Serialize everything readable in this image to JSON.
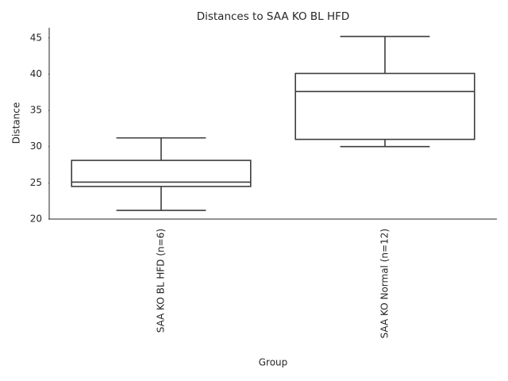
{
  "chart_data": {
    "type": "box",
    "title": "Distances to SAA KO BL HFD",
    "x_label": "Group",
    "y_label": "Distance",
    "categories": [
      "SAA KO BL HFD (n=6)",
      "SAA KO Normal (n=12)"
    ],
    "boxes": [
      {
        "low": 21.2,
        "q1": 24.5,
        "median": 25.1,
        "q3": 28.1,
        "high": 31.2
      },
      {
        "low": 30.0,
        "q1": 31.0,
        "median": 37.6,
        "q3": 40.1,
        "high": 45.2
      }
    ],
    "color": "#3d3d3d",
    "fill": "#ffffff",
    "ylim": [
      20,
      46.4
    ],
    "yticks": [
      20,
      25,
      30,
      35,
      40,
      45
    ],
    "grid": false
  }
}
